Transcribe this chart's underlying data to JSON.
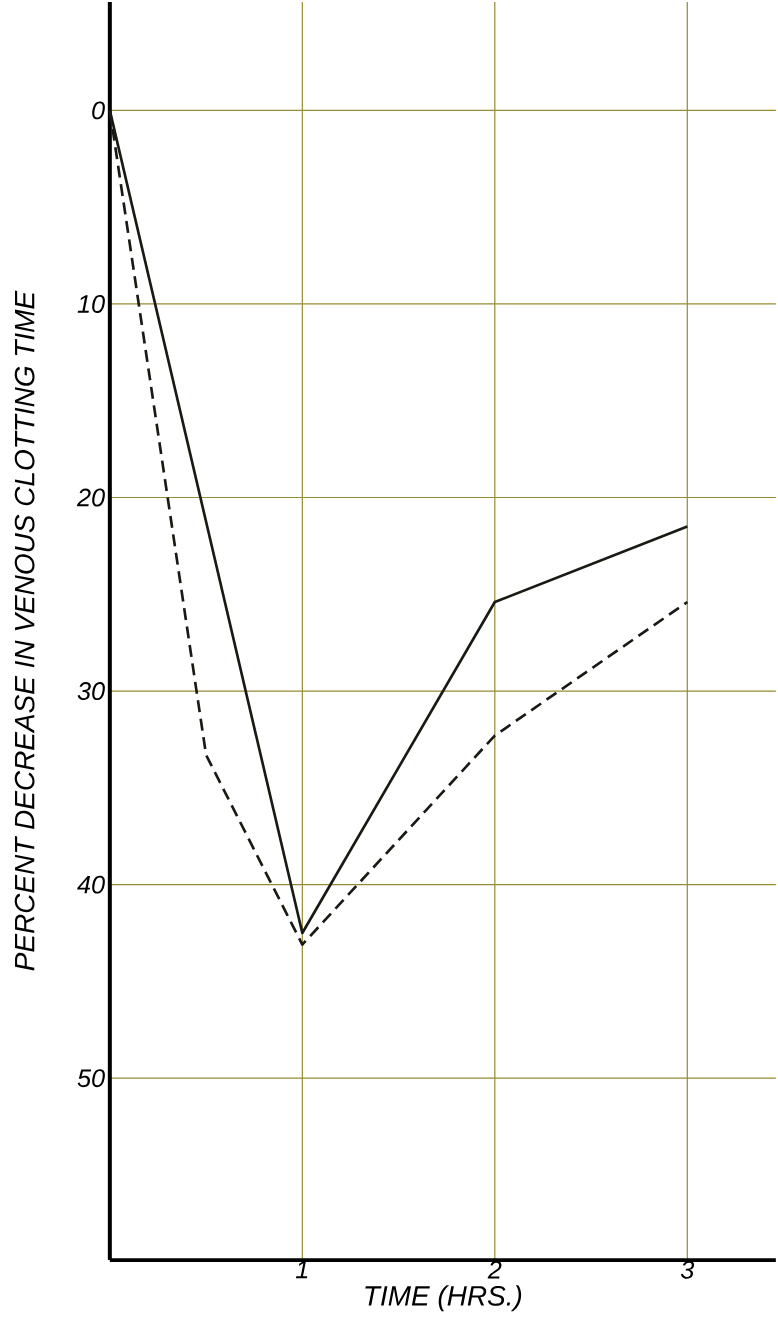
{
  "chart_data": {
    "type": "line",
    "xlabel": "TIME (HRS.)",
    "ylabel": "PERCENT DECREASE IN VENOUS CLOTTING TIME",
    "xlim": [
      0,
      3.46
    ],
    "ylim": [
      59.4,
      -5.6
    ],
    "xticks": [
      1,
      2,
      3
    ],
    "yticks": [
      0,
      10,
      20,
      30,
      40,
      50
    ],
    "grid": true,
    "marker": "none",
    "series": [
      {
        "color": "#1a1a14",
        "line_style": "solid",
        "x": [
          0,
          1,
          2,
          3
        ],
        "values": [
          0,
          42.5,
          25.4,
          21.5
        ]
      },
      {
        "color": "#1a1a14",
        "line_style": "dashed",
        "x": [
          0,
          0.5,
          1,
          2,
          3
        ],
        "values": [
          0,
          33.3,
          43.1,
          32.3,
          25.4
        ]
      }
    ]
  }
}
